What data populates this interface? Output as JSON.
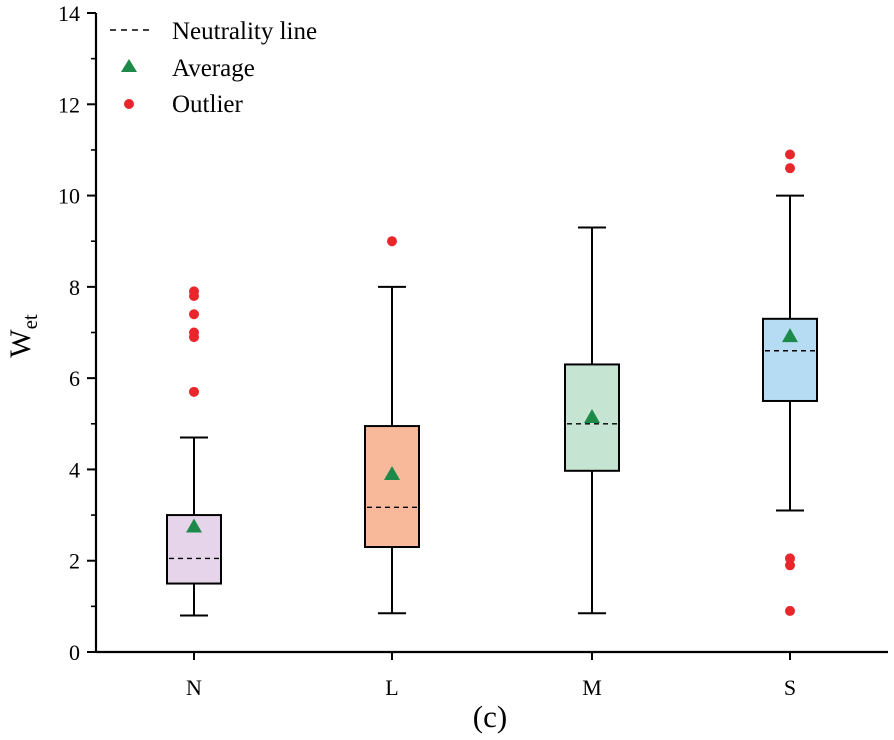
{
  "chart_data": {
    "type": "box",
    "panel_label": "(c)",
    "ylabel": "W",
    "ylabel_subscript": "et",
    "xlabel": "",
    "ylim": [
      0,
      14
    ],
    "yticks": [
      0,
      2,
      4,
      6,
      8,
      10,
      12,
      14
    ],
    "categories": [
      "N",
      "L",
      "M",
      "S"
    ],
    "legend": {
      "position": "top-left",
      "items": [
        {
          "key": "neutrality",
          "label": "Neutrality line",
          "marker": "dashed-line"
        },
        {
          "key": "average",
          "label": "Average",
          "marker": "triangle",
          "color": "#1e8a4a"
        },
        {
          "key": "outlier",
          "label": "Outlier",
          "marker": "dot",
          "color": "#e8262c"
        }
      ]
    },
    "boxes": [
      {
        "category": "N",
        "whisker_low": 0.8,
        "q1": 1.5,
        "median": 2.05,
        "q3": 3.0,
        "whisker_high": 4.7,
        "mean": 2.75,
        "outliers": [
          5.7,
          6.9,
          7.0,
          7.4,
          7.8,
          7.9
        ],
        "fill": "#e6d5ea"
      },
      {
        "category": "L",
        "whisker_low": 0.85,
        "q1": 2.3,
        "median": 3.17,
        "q3": 4.95,
        "whisker_high": 8.0,
        "mean": 3.9,
        "outliers": [
          9.0
        ],
        "fill": "#f8b99a"
      },
      {
        "category": "M",
        "whisker_low": 0.85,
        "q1": 3.97,
        "median": 5.0,
        "q3": 6.3,
        "whisker_high": 9.3,
        "mean": 5.15,
        "outliers": [],
        "fill": "#c5e5d2"
      },
      {
        "category": "S",
        "whisker_low": 3.1,
        "q1": 5.5,
        "median": 6.6,
        "q3": 7.3,
        "whisker_high": 10.0,
        "mean": 6.92,
        "outliers": [
          0.9,
          1.9,
          2.05,
          10.6,
          10.9
        ],
        "fill": "#b6dcf3"
      }
    ],
    "colors": {
      "mean": "#1e8a4a",
      "outlier": "#e8262c",
      "axis": "#000000"
    }
  }
}
